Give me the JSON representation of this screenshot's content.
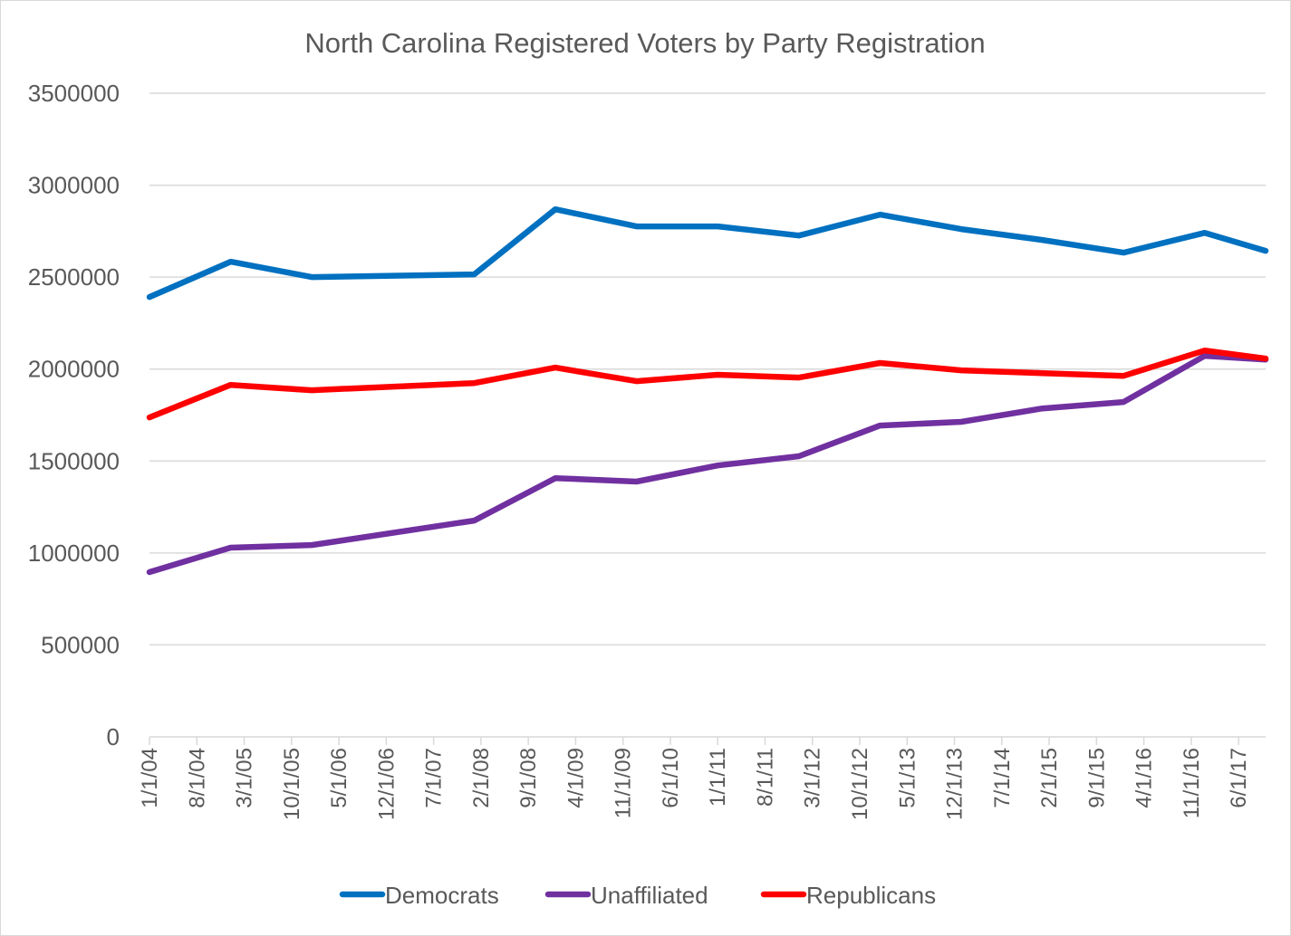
{
  "chart_data": {
    "type": "line",
    "title": "North Carolina Registered Voters by Party Registration",
    "xlabel": "",
    "ylabel": "",
    "ylim": [
      0,
      3500000
    ],
    "yticks": [
      0,
      500000,
      1000000,
      1500000,
      2000000,
      2500000,
      3000000,
      3500000
    ],
    "xlim": [
      "2004-01-01",
      "2017-10-01"
    ],
    "xtick_labels": [
      "1/1/04",
      "8/1/04",
      "3/1/05",
      "10/1/05",
      "5/1/06",
      "12/1/06",
      "7/1/07",
      "2/1/08",
      "9/1/08",
      "4/1/09",
      "11/1/09",
      "6/1/10",
      "1/1/11",
      "8/1/11",
      "3/1/12",
      "10/1/12",
      "5/1/13",
      "12/1/13",
      "7/1/14",
      "2/1/15",
      "9/1/15",
      "4/1/16",
      "11/1/16",
      "6/1/17"
    ],
    "grid": true,
    "legend_position": "bottom",
    "x": [
      "2004-01-01",
      "2005-01-01",
      "2006-01-01",
      "2008-01-01",
      "2009-01-01",
      "2010-01-01",
      "2011-01-01",
      "2012-01-01",
      "2013-01-01",
      "2014-01-01",
      "2015-01-01",
      "2016-01-01",
      "2017-01-01",
      "2017-10-01"
    ],
    "series": [
      {
        "name": "Democrats",
        "color": "#0070C0",
        "values": [
          2392000,
          2584000,
          2500000,
          2515000,
          2869000,
          2776000,
          2776000,
          2726000,
          2840000,
          2761000,
          2702000,
          2633000,
          2741000,
          2643000
        ]
      },
      {
        "name": "Unaffiliated",
        "color": "#7030A0",
        "values": [
          896000,
          1029000,
          1043000,
          1176000,
          1407000,
          1388000,
          1476000,
          1526000,
          1693000,
          1713000,
          1786000,
          1821000,
          2072000,
          2052000
        ]
      },
      {
        "name": "Republicans",
        "color": "#FF0000",
        "values": [
          1737000,
          1914000,
          1885000,
          1924000,
          2008000,
          1934000,
          1969000,
          1954000,
          2033000,
          1993000,
          1978000,
          1963000,
          2101000,
          2057000
        ]
      }
    ]
  }
}
